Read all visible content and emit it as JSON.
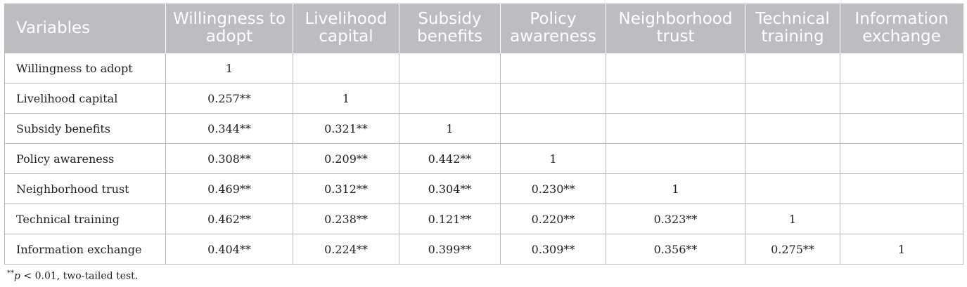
{
  "table": {
    "headers": [
      "Variables",
      "Willingness to adopt",
      "Livelihood capital",
      "Subsidy benefits",
      "Policy awareness",
      "Neighborhood trust",
      "Technical training",
      "Information exchange"
    ],
    "rows": [
      [
        "Willingness to adopt",
        "1",
        "",
        "",
        "",
        "",
        "",
        ""
      ],
      [
        "Livelihood capital",
        "0.257**",
        "1",
        "",
        "",
        "",
        "",
        ""
      ],
      [
        "Subsidy benefits",
        "0.344**",
        "0.321**",
        "1",
        "",
        "",
        "",
        ""
      ],
      [
        "Policy awareness",
        "0.308**",
        "0.209**",
        "0.442**",
        "1",
        "",
        "",
        ""
      ],
      [
        "Neighborhood trust",
        "0.469**",
        "0.312**",
        "0.304**",
        "0.230**",
        "1",
        "",
        ""
      ],
      [
        "Technical training",
        "0.462**",
        "0.238**",
        "0.121**",
        "0.220**",
        "0.323**",
        "1",
        ""
      ],
      [
        "Information exchange",
        "0.404**",
        "0.224**",
        "0.399**",
        "0.309**",
        "0.356**",
        "0.275**",
        "1"
      ]
    ]
  },
  "footnote": {
    "marker": "**",
    "variable": "p",
    "text": " < 0.01, two-tailed test."
  },
  "colors": {
    "header_bg": "#bbbdc0",
    "header_text": "#ffffff",
    "border": "#b9b9b9"
  }
}
